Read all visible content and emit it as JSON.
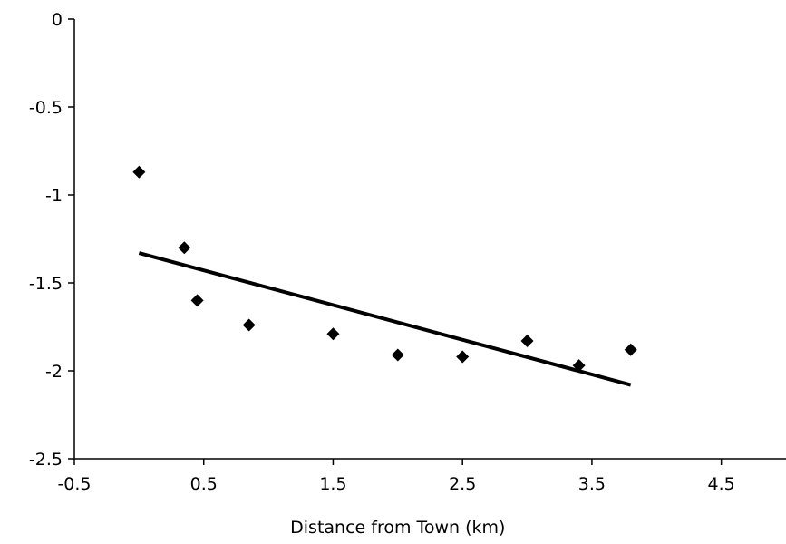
{
  "chart_data": {
    "type": "scatter",
    "title": "",
    "xlabel": "Distance from Town (km)",
    "ylabel": "",
    "xlim": [
      -0.5,
      5.0
    ],
    "ylim": [
      -2.5,
      0
    ],
    "x_ticks": [
      -0.5,
      0.5,
      1.5,
      2.5,
      3.5,
      4.5
    ],
    "x_tick_labels": [
      "-0.5",
      "0.5",
      "1.5",
      "2.5",
      "3.5",
      "4.5"
    ],
    "y_ticks": [
      0,
      -0.5,
      -1,
      -1.5,
      -2,
      -2.5
    ],
    "y_tick_labels": [
      "0",
      "-0.5",
      "-1",
      "-1.5",
      "-2",
      "-2.5"
    ],
    "grid": false,
    "legend": "none",
    "series": [
      {
        "marker": "diamond",
        "color": "#000000",
        "points": [
          {
            "x": 0.0,
            "y": -0.87
          },
          {
            "x": 0.35,
            "y": -1.3
          },
          {
            "x": 0.45,
            "y": -1.6
          },
          {
            "x": 0.85,
            "y": -1.74
          },
          {
            "x": 1.5,
            "y": -1.79
          },
          {
            "x": 2.0,
            "y": -1.91
          },
          {
            "x": 2.5,
            "y": -1.92
          },
          {
            "x": 3.0,
            "y": -1.83
          },
          {
            "x": 3.4,
            "y": -1.97
          },
          {
            "x": 3.8,
            "y": -1.88
          }
        ]
      }
    ],
    "trendline": {
      "type": "linear",
      "color": "#000000",
      "x": [
        0.0,
        3.8
      ],
      "y": [
        -1.33,
        -2.08
      ]
    }
  }
}
